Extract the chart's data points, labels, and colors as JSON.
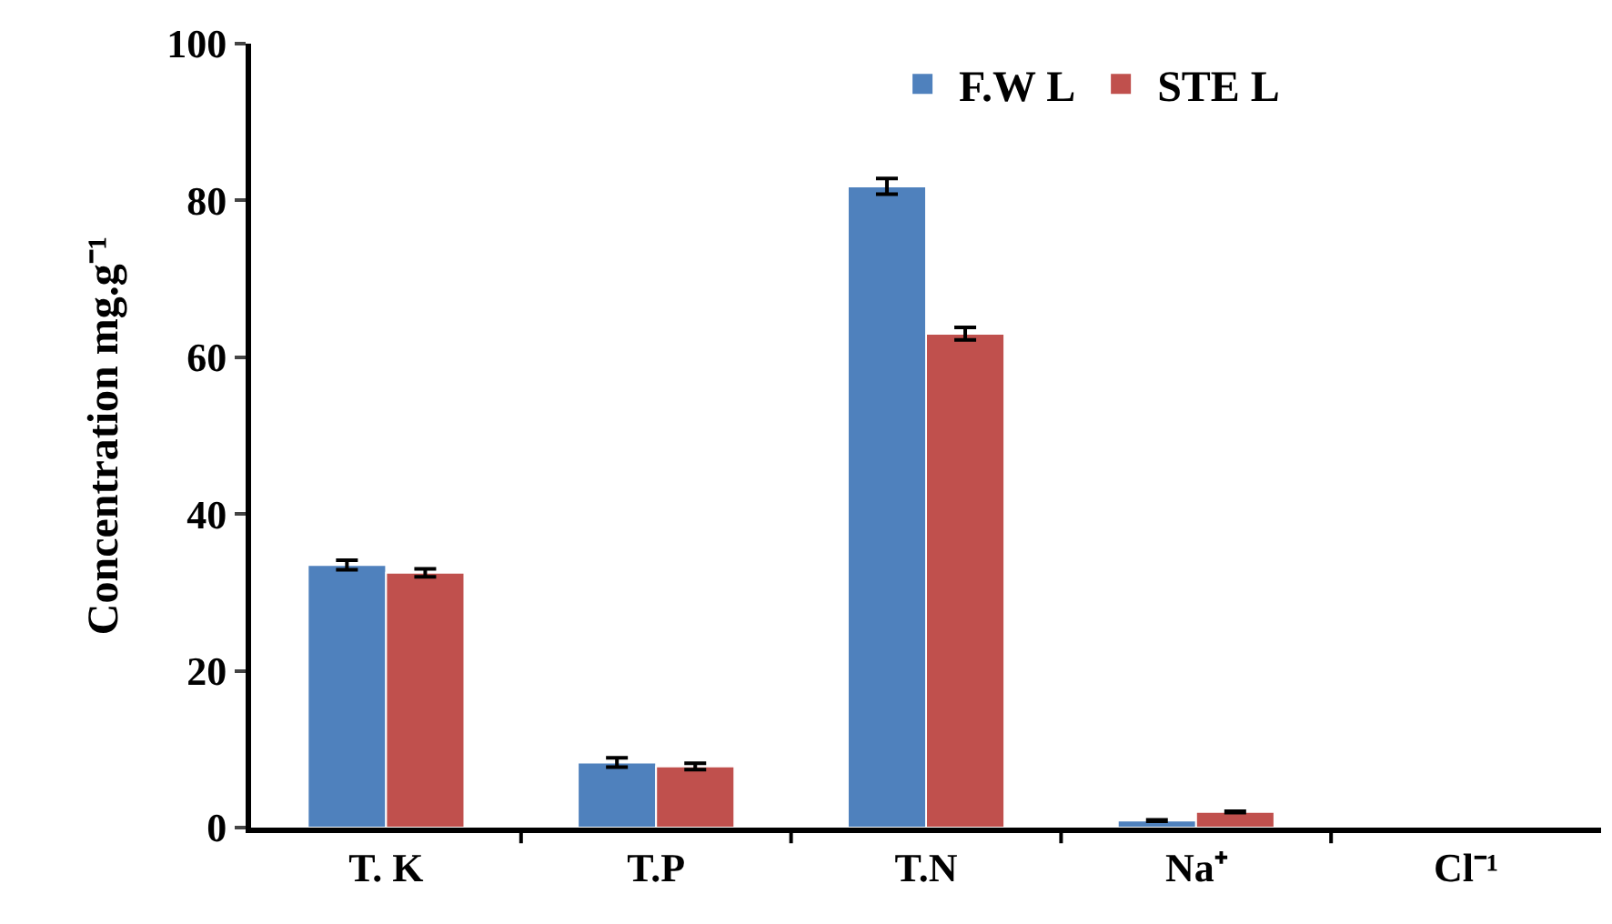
{
  "chart_data": {
    "type": "bar",
    "ylabel": "Concentration mg.g⁻¹",
    "categories": [
      "T. K",
      "T.P",
      "T.N",
      "Na⁺",
      "Cl⁻¹"
    ],
    "series": [
      {
        "name": "F.W L",
        "color": "#4f81bd",
        "values": [
          33.5,
          8.3,
          81.8,
          0.9,
          null
        ],
        "errors": [
          0.6,
          0.6,
          1.0,
          0.1,
          null
        ]
      },
      {
        "name": "STE L",
        "color": "#c0504d",
        "values": [
          32.5,
          7.8,
          63,
          2.0,
          null
        ],
        "errors": [
          0.5,
          0.4,
          0.8,
          0.1,
          null
        ]
      }
    ],
    "ylim": [
      0,
      100
    ],
    "yticks": [
      0,
      20,
      40,
      60,
      80,
      100
    ],
    "grid": false,
    "legend": "top"
  }
}
